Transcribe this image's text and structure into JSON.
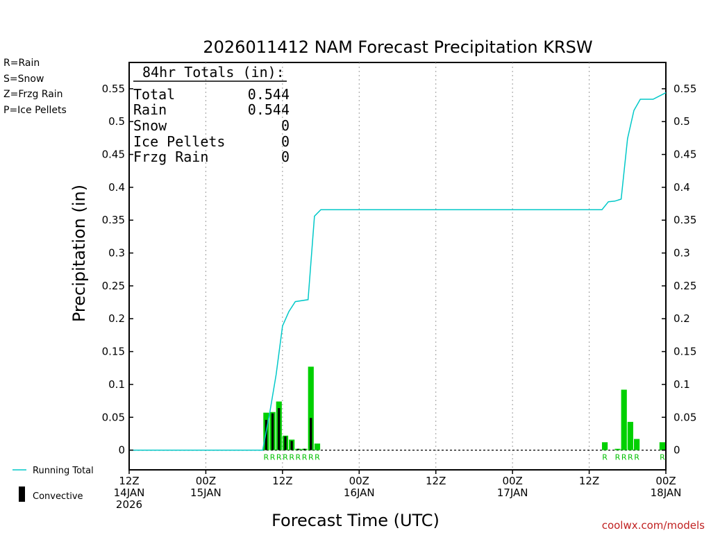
{
  "title": "2026011412 NAM Forecast Precipitation KRSW",
  "ylabel": "Precipitation (in)",
  "xlabel": "Forecast Time (UTC)",
  "credit": "coolwx.com/models",
  "legend_types": [
    {
      "label": "R=Rain",
      "color": "#00c000"
    },
    {
      "label": "S=Snow",
      "color": "#3c3cff"
    },
    {
      "label": "Z=Frzg Rain",
      "color": "#ff8c3c"
    },
    {
      "label": "P=Ice Pellets",
      "color": "#e6009a"
    }
  ],
  "legend_bottom": {
    "running_total": "Running Total",
    "convective": "Convective"
  },
  "totals_box": {
    "header": "84hr Totals (in):",
    "rows": [
      {
        "label": "Total",
        "value": "0.544"
      },
      {
        "label": "Rain",
        "value": "0.544"
      },
      {
        "label": "Snow",
        "value": "0"
      },
      {
        "label": "Ice Pellets",
        "value": "0"
      },
      {
        "label": "Frzg Rain",
        "value": "0"
      }
    ]
  },
  "colors": {
    "rain": "#00d000",
    "convective": "#000000",
    "running_total": "#00c8c8",
    "rain_label": "#00c000",
    "grid": "#999999",
    "axis": "#000000"
  },
  "chart_data": {
    "type": "bar",
    "x_unit": "forecast hour (from 12Z 14JAN 2026)",
    "xlim": [
      0,
      84
    ],
    "ylim": [
      -0.03,
      0.59
    ],
    "y_ticks": [
      0,
      0.05,
      0.1,
      0.15,
      0.2,
      0.25,
      0.3,
      0.35,
      0.4,
      0.45,
      0.5,
      0.55
    ],
    "y_tick_labels": [
      "0",
      "0.05",
      "0.1",
      "0.15",
      "0.2",
      "0.25",
      "0.3",
      "0.35",
      "0.4",
      "0.45",
      "0.5",
      "0.55"
    ],
    "x_ticks": [
      {
        "hour": 0,
        "lines": [
          "12Z",
          "14JAN",
          "2026"
        ]
      },
      {
        "hour": 12,
        "lines": [
          "00Z",
          "15JAN"
        ]
      },
      {
        "hour": 24,
        "lines": [
          "12Z"
        ]
      },
      {
        "hour": 36,
        "lines": [
          "00Z",
          "16JAN"
        ]
      },
      {
        "hour": 48,
        "lines": [
          "12Z"
        ]
      },
      {
        "hour": 60,
        "lines": [
          "00Z",
          "17JAN"
        ]
      },
      {
        "hour": 72,
        "lines": [
          "12Z"
        ]
      },
      {
        "hour": 84,
        "lines": [
          "00Z",
          "18JAN"
        ]
      }
    ],
    "grid": "vertical dotted",
    "hourly_precip": [
      {
        "hour": 22,
        "total": 0.057,
        "convective": 0.046,
        "ptype": "R"
      },
      {
        "hour": 23,
        "total": 0.058,
        "convective": 0.056,
        "ptype": "R"
      },
      {
        "hour": 24,
        "total": 0.074,
        "convective": 0.064,
        "ptype": "R"
      },
      {
        "hour": 25,
        "total": 0.022,
        "convective": 0.021,
        "ptype": "R"
      },
      {
        "hour": 26,
        "total": 0.016,
        "convective": 0.014,
        "ptype": "R"
      },
      {
        "hour": 27,
        "total": 0.002,
        "convective": 0.002,
        "ptype": "R"
      },
      {
        "hour": 28,
        "total": 0.002,
        "convective": 0.002,
        "ptype": "R"
      },
      {
        "hour": 29,
        "total": 0.127,
        "convective": 0.049,
        "ptype": "R"
      },
      {
        "hour": 30,
        "total": 0.01,
        "convective": 0.0,
        "ptype": "R"
      },
      {
        "hour": 75,
        "total": 0.012,
        "convective": 0.0,
        "ptype": "R"
      },
      {
        "hour": 77,
        "total": 0.002,
        "convective": 0.0,
        "ptype": "R"
      },
      {
        "hour": 78,
        "total": 0.092,
        "convective": 0.0,
        "ptype": "R"
      },
      {
        "hour": 79,
        "total": 0.043,
        "convective": 0.0,
        "ptype": "R"
      },
      {
        "hour": 80,
        "total": 0.017,
        "convective": 0.0,
        "ptype": "R"
      },
      {
        "hour": 84,
        "total": 0.012,
        "convective": 0.0,
        "ptype": "R"
      }
    ],
    "running_total": {
      "name": "Running Total",
      "points": [
        [
          0,
          0
        ],
        [
          20.9,
          0
        ],
        [
          22,
          0.057
        ],
        [
          23,
          0.115
        ],
        [
          24,
          0.189
        ],
        [
          25,
          0.211
        ],
        [
          26,
          0.226
        ],
        [
          28,
          0.229
        ],
        [
          29,
          0.356
        ],
        [
          30,
          0.366
        ],
        [
          74,
          0.366
        ],
        [
          75,
          0.378
        ],
        [
          76,
          0.379
        ],
        [
          77,
          0.382
        ],
        [
          78,
          0.474
        ],
        [
          79,
          0.517
        ],
        [
          80,
          0.534
        ],
        [
          82,
          0.534
        ],
        [
          84,
          0.544
        ]
      ]
    }
  }
}
